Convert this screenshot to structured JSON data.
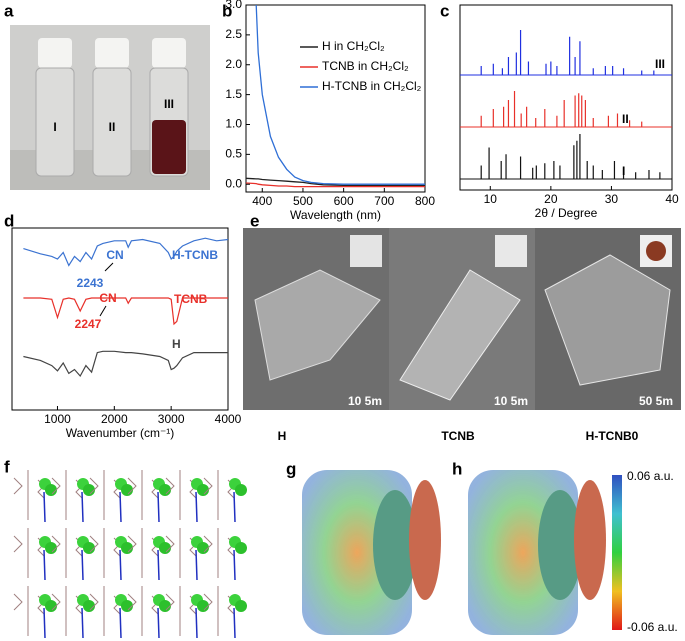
{
  "panel_labels": [
    "a",
    "b",
    "c",
    "d",
    "e",
    "f",
    "g",
    "h"
  ],
  "photo": {
    "labels": [
      "I",
      "II",
      "III"
    ]
  },
  "chart_data": [
    {
      "type": "line",
      "xlabel": "Wavelength (nm)",
      "x": [
        360,
        385,
        390,
        400,
        420,
        440,
        460,
        480,
        500,
        520,
        550,
        600,
        700,
        800
      ],
      "series": [
        {
          "name": "H in CH₂Cl₂",
          "color": "#222222",
          "values": [
            0.1,
            0.09,
            0.09,
            0.08,
            0.07,
            0.06,
            0.05,
            0.04,
            0.03,
            0.01,
            -0.01,
            -0.02,
            -0.02,
            -0.02
          ]
        },
        {
          "name": "TCNB in CH₂Cl₂",
          "color": "#e8302a",
          "values": [
            0.02,
            0.01,
            0.0,
            -0.01,
            -0.02,
            -0.03,
            -0.03,
            -0.04,
            -0.04,
            -0.04,
            -0.04,
            -0.04,
            -0.04,
            -0.04
          ]
        },
        {
          "name": "H-TCNB in CH₂Cl₂",
          "color": "#2f6fd6",
          "values": [
            null,
            3.0,
            2.2,
            1.5,
            0.8,
            0.45,
            0.25,
            0.12,
            0.06,
            0.03,
            0.01,
            0.0,
            0.0,
            0.0
          ]
        }
      ],
      "xlim": [
        360,
        800
      ],
      "ylim": [
        -0.13,
        3.0
      ],
      "xticks": [
        400,
        500,
        600,
        700,
        800
      ],
      "yticks": [
        {
          "value": 0,
          "label": "0.0"
        },
        0.5,
        {
          "value": 1,
          "label": "1.0"
        },
        1.5,
        {
          "value": 2,
          "label": "2.0"
        },
        2.5,
        {
          "value": 3,
          "label": "3.0"
        }
      ]
    },
    {
      "type": "stick",
      "xlabel": "2θ / Degree",
      "series": [
        {
          "name": "III",
          "color": "#1f2fe0",
          "x": [
            8.5,
            10.5,
            12,
            13,
            14.3,
            15,
            16.3,
            19.2,
            20,
            21,
            23.1,
            24,
            24.8,
            27,
            29,
            30.2,
            32,
            35,
            37
          ],
          "values": [
            20,
            25,
            15,
            40,
            50,
            100,
            30,
            25,
            30,
            20,
            85,
            40,
            75,
            15,
            20,
            20,
            15,
            10,
            10
          ]
        },
        {
          "name": "II",
          "color": "#e8302a",
          "x": [
            8.5,
            10.5,
            12.2,
            13,
            14,
            15.1,
            16,
            17.5,
            19,
            21,
            22.2,
            24,
            24.6,
            25.1,
            25.7,
            27,
            29.5,
            31,
            33,
            35
          ],
          "values": [
            25,
            40,
            45,
            60,
            80,
            30,
            45,
            20,
            40,
            25,
            60,
            70,
            75,
            70,
            60,
            20,
            25,
            30,
            15,
            12
          ]
        },
        {
          "name": "I",
          "color": "#111111",
          "x": [
            8.5,
            9.8,
            11.8,
            12.6,
            15,
            17,
            17.6,
            19,
            20.5,
            21.5,
            23.8,
            24.3,
            24.8,
            26,
            27,
            28.5,
            30.5,
            32,
            34,
            36.2,
            38
          ],
          "values": [
            30,
            70,
            40,
            55,
            50,
            25,
            30,
            35,
            40,
            30,
            75,
            85,
            100,
            40,
            30,
            20,
            40,
            25,
            15,
            20,
            15
          ]
        }
      ],
      "xlim": [
        5,
        40
      ],
      "xticks": [
        10,
        20,
        30,
        40
      ]
    },
    {
      "type": "spectrum",
      "xlabel": "Wavenumber (cm⁻¹)",
      "x": [
        400,
        700,
        900,
        1000,
        1100,
        1200,
        1300,
        1400,
        1500,
        1600,
        1700,
        1800,
        2000,
        2200,
        2245,
        2300,
        2500,
        2800,
        2950,
        3000,
        3050,
        3100,
        3200,
        3400,
        3600,
        3800,
        4000
      ],
      "series": [
        {
          "name": "H-TCNB",
          "color": "#3b73d1",
          "values": [
            18,
            14,
            12,
            10,
            15,
            5,
            12,
            8,
            15,
            10,
            20,
            22,
            24,
            24,
            19,
            24,
            25,
            22,
            15,
            10,
            12,
            16,
            20,
            24,
            26,
            24,
            25
          ]
        },
        {
          "name": "TCNB",
          "color": "#e8302a",
          "values": [
            20,
            20,
            19,
            5,
            19,
            20,
            19,
            10,
            19,
            20,
            20,
            20,
            20,
            20,
            16,
            20,
            20,
            20,
            20,
            19,
            0,
            2,
            20,
            20,
            20,
            20,
            20
          ]
        },
        {
          "name": "H",
          "color": "#444444",
          "values": [
            15,
            12,
            8,
            4,
            10,
            2,
            5,
            0,
            8,
            3,
            18,
            19,
            19,
            18,
            18,
            18,
            17,
            15,
            12,
            5,
            6,
            8,
            14,
            18,
            18,
            18,
            18
          ]
        }
      ],
      "annotations": [
        "CN",
        "2243",
        "CN",
        "2247"
      ],
      "xlim": [
        200,
        4000
      ],
      "xticks": [
        1000,
        2000,
        3000,
        4000
      ]
    }
  ],
  "sem": {
    "scale_bars": [
      "10 5m",
      "10 5m",
      "50 5m"
    ],
    "labels": [
      "H",
      "TCNB",
      "H-TCNB0"
    ]
  },
  "colorbar": {
    "max_label": "0.06 a.u.",
    "min_label": "-0.06 a.u."
  }
}
